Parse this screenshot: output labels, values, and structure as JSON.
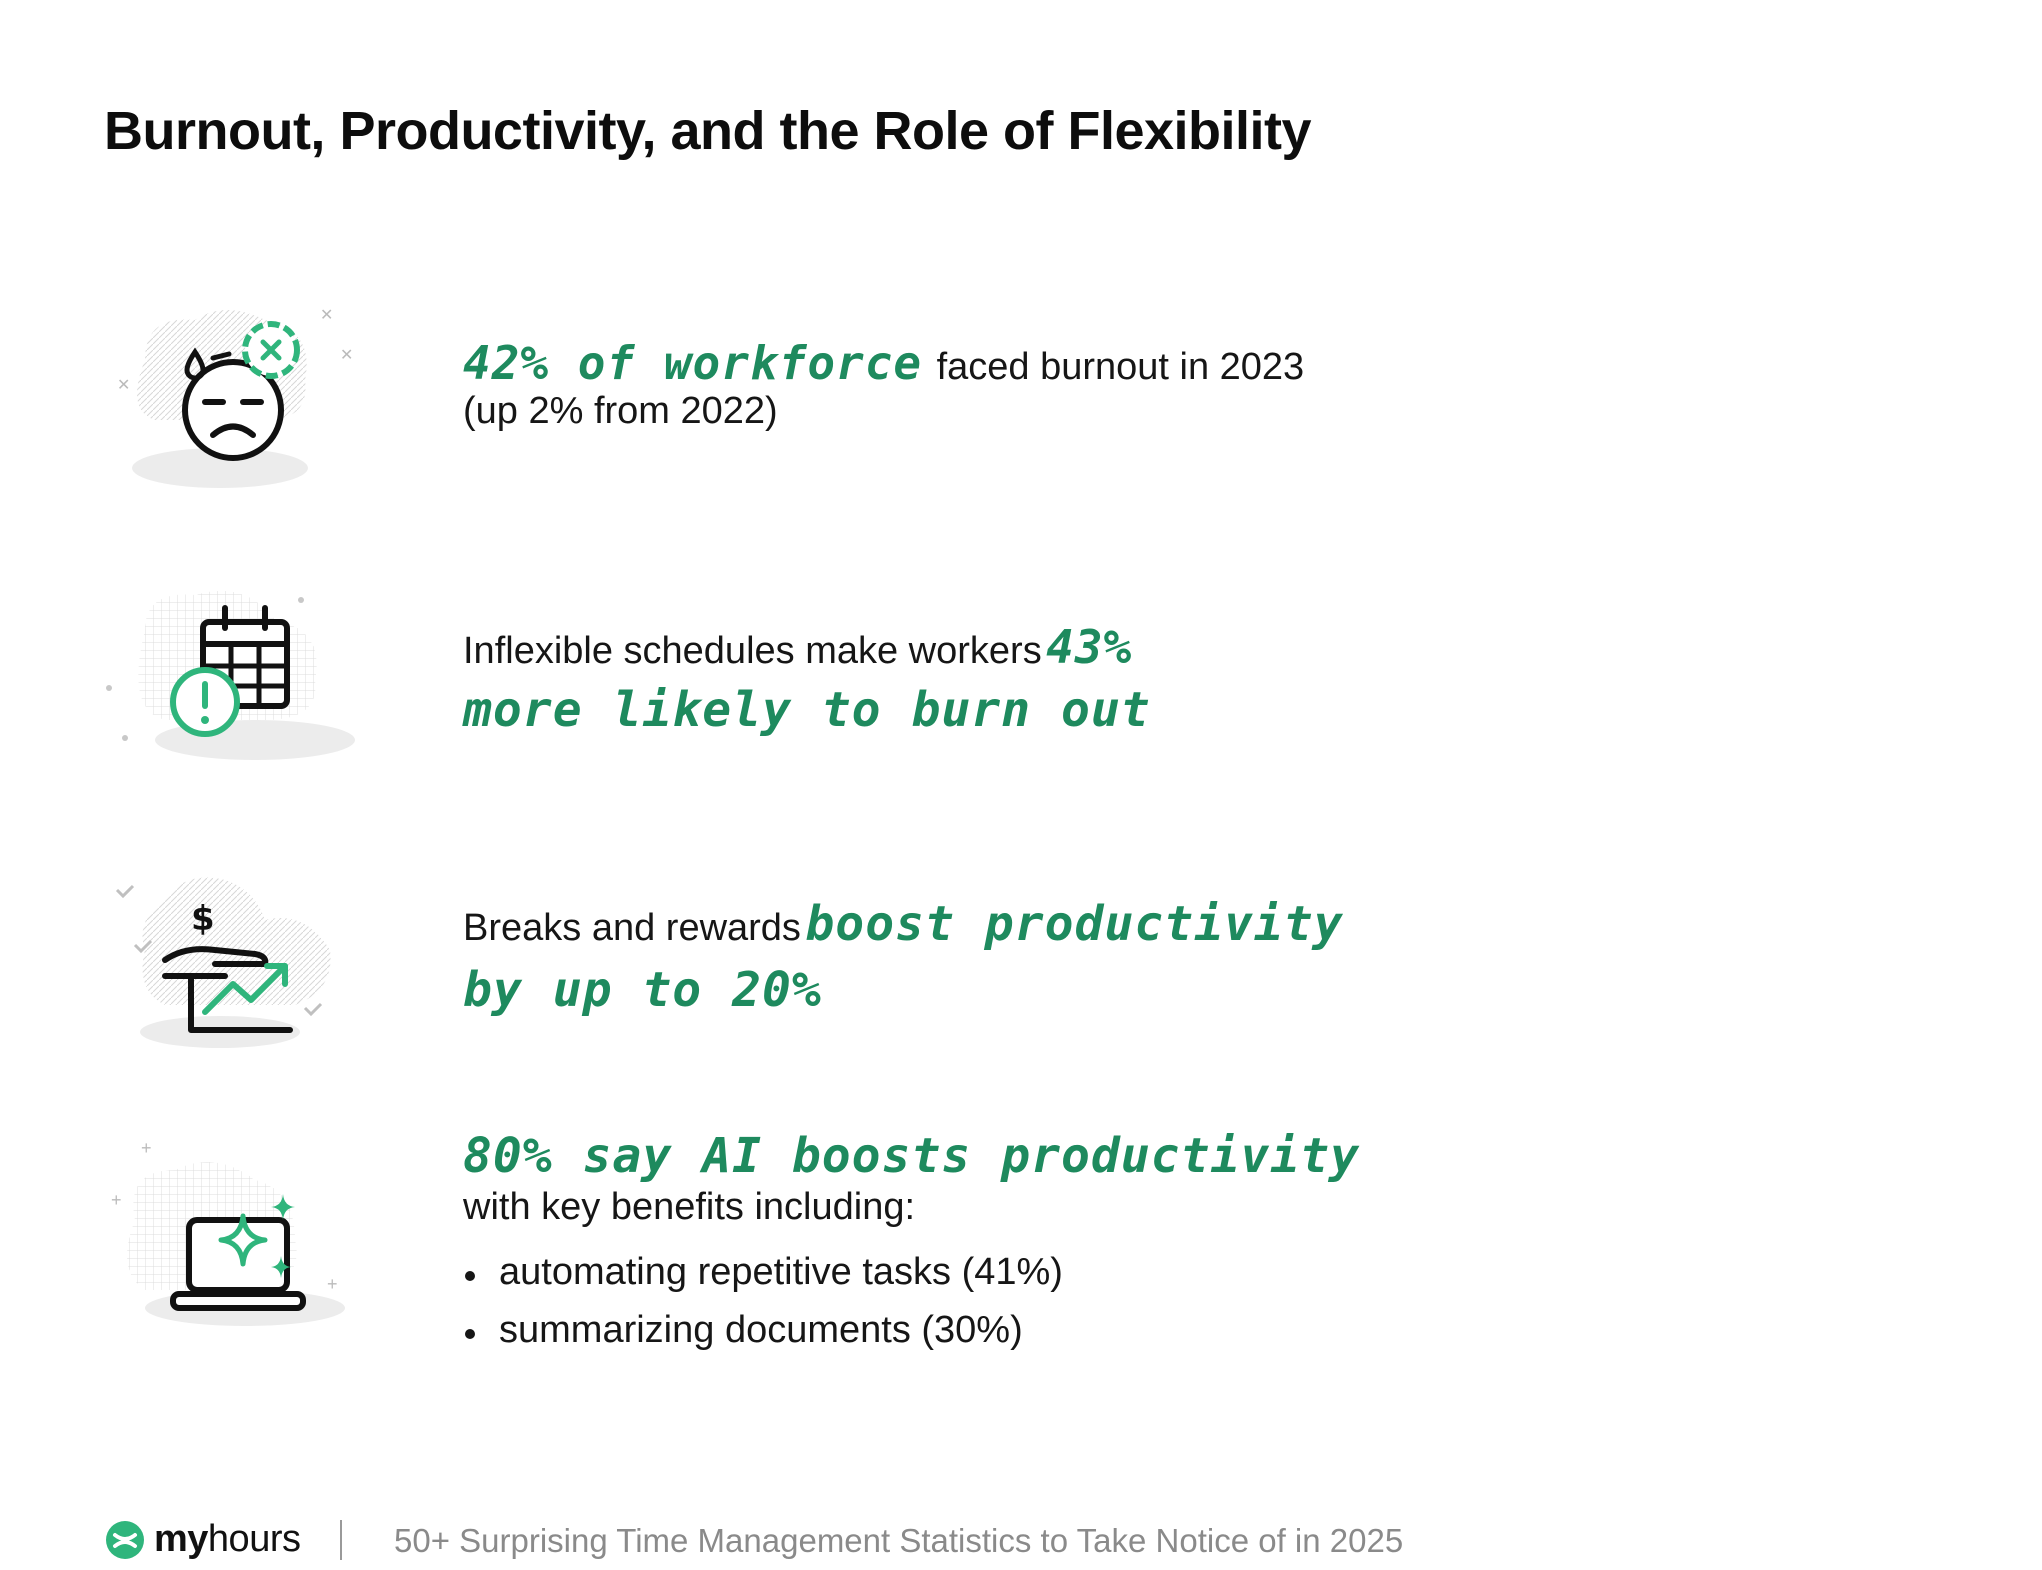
{
  "title": "Burnout, Productivity, and the Role of Flexibility",
  "colors": {
    "accent": "#1e8a5e",
    "icon_green": "#2fb57c",
    "text": "#161616",
    "muted": "#8a8a8a"
  },
  "stats": [
    {
      "icon": "burnout-face-icon",
      "highlight": "42% of workforce",
      "text_after": "faced burnout in 2023",
      "line2": "(up 2% from 2022)"
    },
    {
      "icon": "calendar-alert-icon",
      "text_before": "Inflexible schedules make workers",
      "highlight_inline": "43%",
      "highlight_line2": "more likely to burn out"
    },
    {
      "icon": "hand-growth-icon",
      "text_before": "Breaks and rewards",
      "highlight_inline": "boost productivity",
      "highlight_line2": "by up to 20%"
    },
    {
      "icon": "laptop-sparkle-icon",
      "highlight": "80% say AI boosts productivity",
      "line2": "with key benefits including:",
      "bullets": [
        "automating repetitive tasks (41%)",
        "summarizing documents (30%)"
      ]
    }
  ],
  "footer": {
    "logo_bold": "my",
    "logo_regular": "hours",
    "caption": "50+ Surprising Time Management Statistics to Take Notice of in 2025"
  }
}
